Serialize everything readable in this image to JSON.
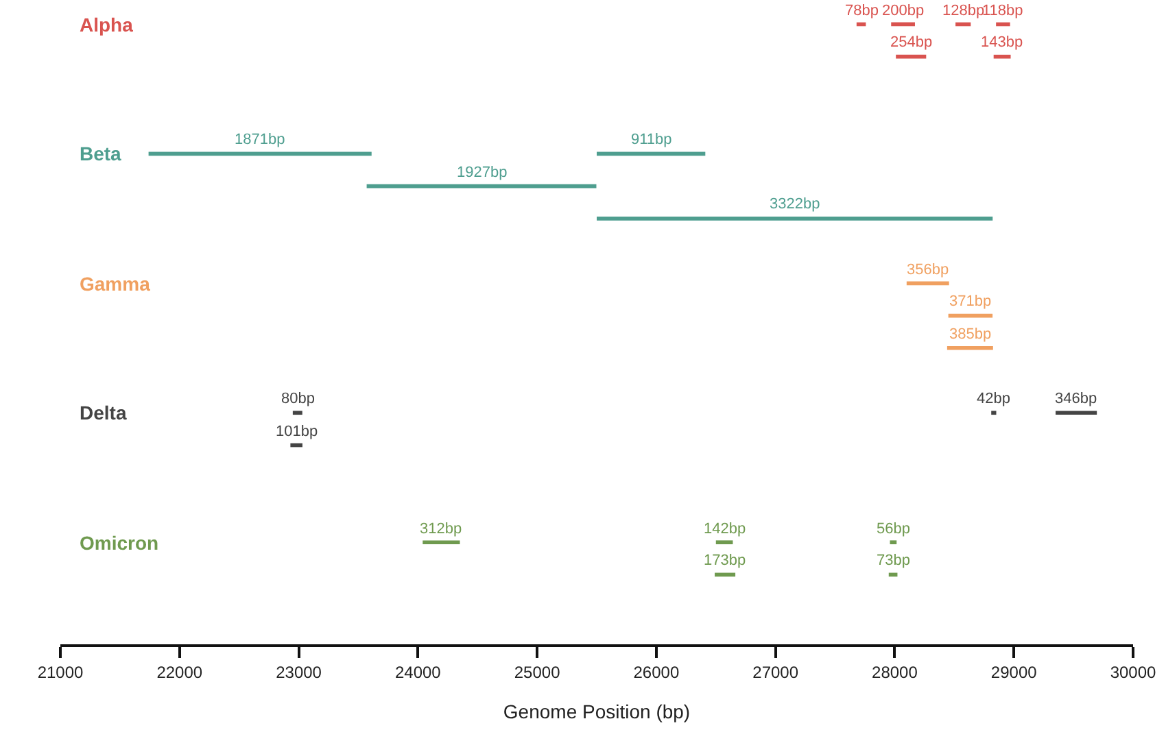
{
  "chart_data": {
    "type": "bar",
    "orientation": "horizontal",
    "xlabel": "Genome Position (bp)",
    "categories": [
      "Alpha",
      null,
      null,
      null,
      "Beta",
      null,
      null,
      null,
      "Gamma",
      null,
      null,
      null,
      "Delta",
      null,
      null,
      null,
      "Omicron",
      null
    ],
    "xlim": [
      21000,
      30000
    ],
    "xticks": [
      21000,
      22000,
      23000,
      24000,
      25000,
      26000,
      27000,
      28000,
      29000,
      30000
    ],
    "grid": false,
    "series": [
      {
        "values": [
          78,
          254,
          null,
          null,
          1871,
          1927,
          3322,
          null,
          356,
          371,
          385,
          null,
          80,
          101,
          null,
          null,
          312,
          173
        ],
        "base": [
          27680,
          28010,
          null,
          null,
          21740,
          23570,
          25500,
          null,
          28100,
          28450,
          28440,
          null,
          22950,
          22930,
          null,
          null,
          24040,
          26490
        ],
        "value_labels": [
          "78bp",
          "254bp",
          null,
          null,
          "1871bp",
          "1927bp",
          "3322bp",
          null,
          "356bp",
          "371bp",
          "385bp",
          null,
          "80bp",
          "101bp",
          null,
          null,
          "312bp",
          "173bp"
        ],
        "colors": [
          "#d9534f",
          "#d9534f",
          null,
          null,
          "#4e9e8f",
          "#4e9e8f",
          "#4e9e8f",
          null,
          "#f0a060",
          "#f0a060",
          "#f0a060",
          null,
          "#444444",
          "#444444",
          null,
          null,
          "#6f9a4f",
          "#6f9a4f"
        ]
      },
      {
        "values": [
          200,
          143,
          null,
          null,
          911,
          null,
          null,
          null,
          null,
          null,
          null,
          null,
          42,
          null,
          null,
          null,
          142,
          73
        ],
        "base": [
          27970,
          28830,
          null,
          null,
          25500,
          null,
          null,
          null,
          null,
          null,
          null,
          null,
          28810,
          null,
          null,
          null,
          26500,
          27950
        ],
        "value_labels": [
          "200bp",
          "143bp",
          null,
          null,
          "911bp",
          null,
          null,
          null,
          null,
          null,
          null,
          null,
          "42bp",
          null,
          null,
          null,
          "142bp",
          "73bp"
        ],
        "colors": [
          "#d9534f",
          "#d9534f",
          null,
          null,
          "#4e9e8f",
          null,
          null,
          null,
          null,
          null,
          null,
          null,
          "#444444",
          null,
          null,
          null,
          "#6f9a4f",
          "#6f9a4f"
        ]
      },
      {
        "values": [
          128,
          null,
          null,
          null,
          null,
          null,
          null,
          null,
          null,
          null,
          null,
          null,
          346,
          null,
          null,
          null,
          56,
          null
        ],
        "base": [
          28510,
          null,
          null,
          null,
          null,
          null,
          null,
          null,
          null,
          null,
          null,
          null,
          29350,
          null,
          null,
          null,
          27960,
          null
        ],
        "value_labels": [
          "128bp",
          null,
          null,
          null,
          null,
          null,
          null,
          null,
          null,
          null,
          null,
          null,
          "346bp",
          null,
          null,
          null,
          "56bp",
          null
        ],
        "colors": [
          "#d9534f",
          null,
          null,
          null,
          null,
          null,
          null,
          null,
          null,
          null,
          null,
          null,
          "#444444",
          null,
          null,
          null,
          "#6f9a4f",
          null
        ]
      },
      {
        "values": [
          118,
          null,
          null,
          null,
          null,
          null,
          null,
          null,
          null,
          null,
          null,
          null,
          null,
          null,
          null,
          null,
          null,
          null
        ],
        "base": [
          28850,
          null,
          null,
          null,
          null,
          null,
          null,
          null,
          null,
          null,
          null,
          null,
          null,
          null,
          null,
          null,
          null,
          null
        ],
        "value_labels": [
          "118bp",
          null,
          null,
          null,
          null,
          null,
          null,
          null,
          null,
          null,
          null,
          null,
          null,
          null,
          null,
          null,
          null,
          null
        ],
        "colors": [
          "#d9534f",
          null,
          null,
          null,
          null,
          null,
          null,
          null,
          null,
          null,
          null,
          null,
          null,
          null,
          null,
          null,
          null,
          null
        ]
      }
    ]
  }
}
